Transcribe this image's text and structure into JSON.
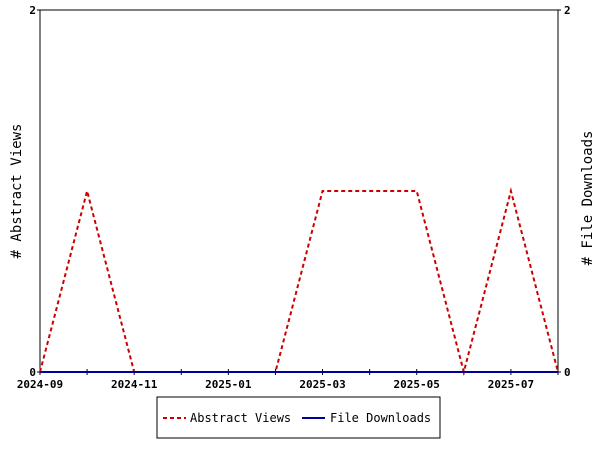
{
  "chart_data": {
    "type": "line",
    "x": [
      "2024-09",
      "2024-10",
      "2024-11",
      "2024-12",
      "2025-01",
      "2025-02",
      "2025-03",
      "2025-04",
      "2025-05",
      "2025-06",
      "2025-07",
      "2025-08"
    ],
    "x_tick_labels": [
      "2024-09",
      "2024-11",
      "2025-01",
      "2025-03",
      "2025-05",
      "2025-07"
    ],
    "ylabel_left": "# Abstract Views",
    "ylabel_right": "# File Downloads",
    "ylim_left": [
      0,
      2
    ],
    "ylim_right": [
      0,
      2
    ],
    "y_ticks_left": [
      "0",
      "2"
    ],
    "y_ticks_right": [
      "0",
      "2"
    ],
    "grid": false,
    "legend_position": "bottom",
    "series": [
      {
        "name": "Abstract Views",
        "axis": "left",
        "color": "#cc0000",
        "style": "dashed",
        "values": [
          0,
          1,
          0,
          0,
          0,
          0,
          1,
          1,
          1,
          0,
          1,
          0
        ]
      },
      {
        "name": "File Downloads",
        "axis": "right",
        "color": "#000099",
        "style": "solid",
        "values": [
          0,
          0,
          0,
          0,
          0,
          0,
          0,
          0,
          0,
          0,
          0,
          0
        ]
      }
    ]
  }
}
